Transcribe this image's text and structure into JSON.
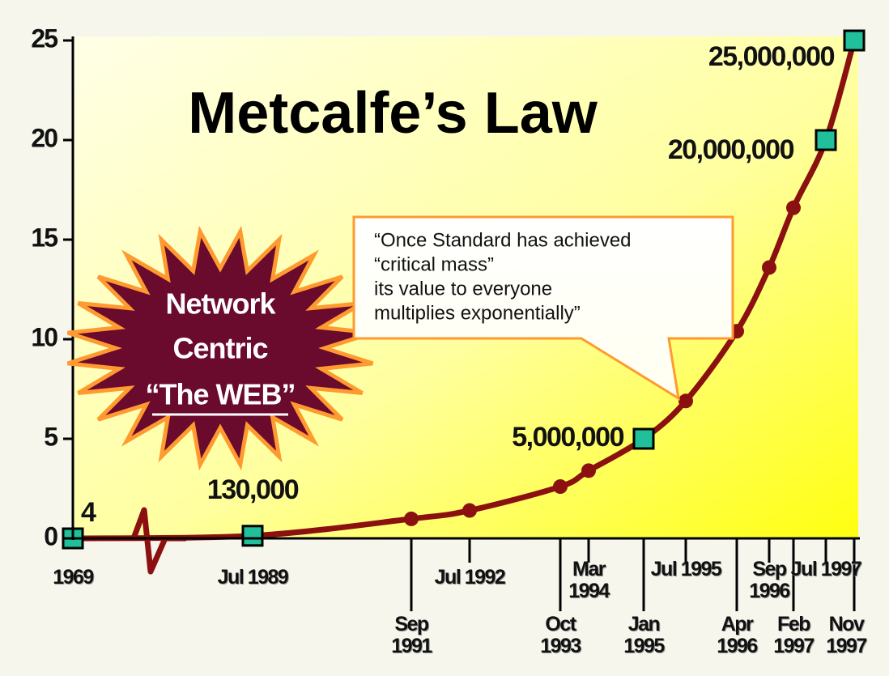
{
  "chart_data": {
    "type": "line",
    "title": "Metcalfe’s Law",
    "categories": [
      "1969",
      "Jul 1989",
      "Sep 1991",
      "Jul 1992",
      "Oct 1993",
      "Mar 1994",
      "Jan 1995",
      "Jul 1995",
      "Apr 1996",
      "Sep 1996",
      "Feb 1997",
      "Jul 1997",
      "Nov 1997"
    ],
    "values": [
      4e-06,
      0.13,
      0.98,
      1.4,
      2.6,
      3.4,
      5,
      6.9,
      10.4,
      13.6,
      16.6,
      20,
      25
    ],
    "value_labels": [
      "4",
      "130,000",
      null,
      null,
      null,
      null,
      "5,000,000",
      null,
      null,
      null,
      null,
      "20,000,000",
      "25,000,000"
    ],
    "color": "#8b1010",
    "marker_color": "#20c09a",
    "ylim": [
      0,
      25
    ],
    "yticks": [
      0,
      5,
      10,
      15,
      20,
      25
    ],
    "starburst": [
      "Network",
      "Centric",
      "“The WEB”"
    ],
    "callout": [
      "“Once Standard has achieved",
      "“critical mass”",
      "its value to everyone",
      "multiplies exponentially”"
    ]
  }
}
